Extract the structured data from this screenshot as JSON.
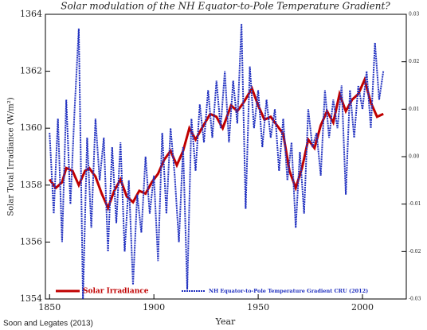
{
  "chart_data": {
    "type": "line",
    "title": "Solar modulation of the NH Equator-to-Pole Temperature Gradient?",
    "ylabel": "Solar Total Irradiance (W/m²)",
    "xlabel": "Year",
    "source": "Soon and Legates (2013)",
    "xlim": [
      1848,
      2021
    ],
    "xticks": [
      1850,
      1900,
      1950,
      2000
    ],
    "ylim": [
      1354,
      1364
    ],
    "yticks": [
      1354,
      1356,
      1358,
      1360,
      1362,
      1364
    ],
    "y2lim": [
      -0.03,
      0.03
    ],
    "y2ticks": [
      -0.03,
      -0.02,
      -0.01,
      {
        "value": 0,
        "label": "0.00"
      },
      0.01,
      0.02,
      0.03
    ],
    "legend": "bottom",
    "series": [
      {
        "name": "Solar Irradiance",
        "color": "#c00000",
        "x": [
          1850,
          1853,
          1856,
          1858,
          1861,
          1864,
          1867,
          1869,
          1872,
          1875,
          1878,
          1881,
          1884,
          1887,
          1890,
          1893,
          1896,
          1899,
          1902,
          1905,
          1908,
          1911,
          1914,
          1917,
          1920,
          1923,
          1927,
          1930,
          1933,
          1937,
          1940,
          1943,
          1947,
          1950,
          1953,
          1956,
          1959,
          1962,
          1965,
          1968,
          1971,
          1974,
          1977,
          1980,
          1983,
          1986,
          1989,
          1992,
          1995,
          1998,
          2001,
          2004,
          2007,
          2010
        ],
        "values": [
          1358.2,
          1357.9,
          1358.1,
          1358.6,
          1358.5,
          1358.0,
          1358.5,
          1358.6,
          1358.3,
          1357.7,
          1357.2,
          1357.8,
          1358.2,
          1357.6,
          1357.4,
          1357.8,
          1357.7,
          1358.1,
          1358.4,
          1358.9,
          1359.2,
          1358.7,
          1359.2,
          1360.0,
          1359.6,
          1360.0,
          1360.5,
          1360.4,
          1360.0,
          1360.8,
          1360.6,
          1360.9,
          1361.4,
          1360.8,
          1360.3,
          1360.4,
          1360.1,
          1359.8,
          1358.5,
          1357.9,
          1358.6,
          1359.6,
          1359.3,
          1360.1,
          1360.6,
          1360.2,
          1361.2,
          1360.6,
          1361.0,
          1361.2,
          1361.7,
          1360.9,
          1360.4,
          1360.5
        ]
      },
      {
        "name": "NH Equator-to-Pole Temperature Gradient CRU (2012)",
        "color": "#1f2fbf",
        "axis": "y2",
        "x": [
          1850,
          1852,
          1854,
          1856,
          1858,
          1860,
          1862,
          1864,
          1866,
          1868,
          1870,
          1872,
          1874,
          1876,
          1878,
          1880,
          1882,
          1884,
          1886,
          1888,
          1890,
          1892,
          1894,
          1896,
          1898,
          1900,
          1902,
          1904,
          1906,
          1908,
          1910,
          1912,
          1914,
          1916,
          1918,
          1920,
          1922,
          1924,
          1926,
          1928,
          1930,
          1932,
          1934,
          1936,
          1938,
          1940,
          1942,
          1944,
          1946,
          1948,
          1950,
          1952,
          1954,
          1956,
          1958,
          1960,
          1962,
          1964,
          1966,
          1968,
          1970,
          1972,
          1974,
          1976,
          1978,
          1980,
          1982,
          1984,
          1986,
          1988,
          1990,
          1992,
          1994,
          1996,
          1998,
          2000,
          2002,
          2004,
          2006,
          2008,
          2010
        ],
        "values": [
          0.005,
          -0.012,
          0.008,
          -0.018,
          0.012,
          -0.01,
          0.01,
          0.027,
          -0.03,
          0.004,
          -0.015,
          0.008,
          -0.005,
          0.004,
          -0.02,
          0.002,
          -0.014,
          0.003,
          -0.02,
          -0.005,
          -0.027,
          -0.008,
          -0.016,
          0.0,
          -0.012,
          -0.004,
          -0.022,
          0.005,
          -0.012,
          0.006,
          -0.004,
          -0.018,
          0.002,
          -0.028,
          0.008,
          -0.003,
          0.011,
          0.003,
          0.014,
          0.004,
          0.016,
          0.006,
          0.018,
          0.003,
          0.016,
          0.007,
          0.028,
          -0.011,
          0.019,
          0.006,
          0.014,
          0.002,
          0.012,
          0.004,
          0.01,
          -0.003,
          0.008,
          -0.005,
          0.003,
          -0.015,
          0.001,
          -0.012,
          0.01,
          0.002,
          0.005,
          -0.004,
          0.014,
          0.004,
          0.012,
          0.006,
          0.015,
          -0.008,
          0.014,
          0.004,
          0.015,
          0.01,
          0.018,
          0.006,
          0.024,
          0.012,
          0.018
        ]
      }
    ]
  }
}
